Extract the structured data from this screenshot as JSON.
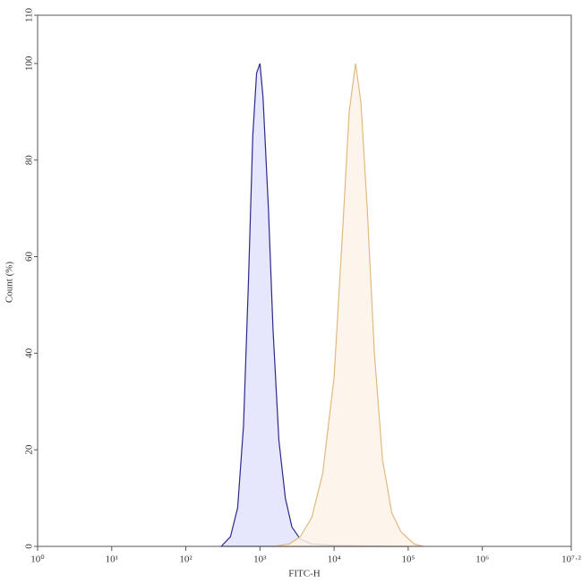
{
  "chart_data": {
    "type": "histogram-overlay",
    "xlabel": "FITC-H",
    "ylabel": "Count (%)",
    "xscale": "log",
    "xlim": [
      1,
      15848931.92
    ],
    "xticks": [
      {
        "value": 1,
        "label": "10⁰"
      },
      {
        "value": 10,
        "label": "10¹"
      },
      {
        "value": 100,
        "label": "10²"
      },
      {
        "value": 1000,
        "label": "10³"
      },
      {
        "value": 10000,
        "label": "10⁴"
      },
      {
        "value": 100000,
        "label": "10⁵"
      },
      {
        "value": 1000000,
        "label": "10⁶"
      },
      {
        "value": 15848931.92,
        "label": "10⁷·²"
      }
    ],
    "ylim": [
      0,
      110
    ],
    "yticks": [
      0,
      20,
      40,
      60,
      80,
      100,
      110
    ],
    "series": [
      {
        "color": "#2a2a8a",
        "fill": "#e2e2fb",
        "x": [
          300,
          400,
          500,
          600,
          700,
          800,
          900,
          1000,
          1100,
          1300,
          1500,
          1800,
          2200,
          2700,
          3500,
          5000,
          10000,
          100000
        ],
        "values": [
          0,
          2,
          8,
          25,
          55,
          85,
          98,
          100,
          93,
          70,
          45,
          22,
          10,
          4,
          1.5,
          0.5,
          0.2,
          0
        ]
      },
      {
        "color": "#e2b97f",
        "fill": "#fdf3e8",
        "x": [
          1500,
          2500,
          3500,
          5000,
          7000,
          10000,
          13000,
          16000,
          19500,
          23000,
          28000,
          35000,
          45000,
          60000,
          80000,
          120000,
          160000
        ],
        "values": [
          0,
          0.5,
          2,
          6,
          15,
          35,
          65,
          90,
          100,
          92,
          70,
          40,
          18,
          7,
          3,
          0.5,
          0
        ]
      }
    ]
  }
}
